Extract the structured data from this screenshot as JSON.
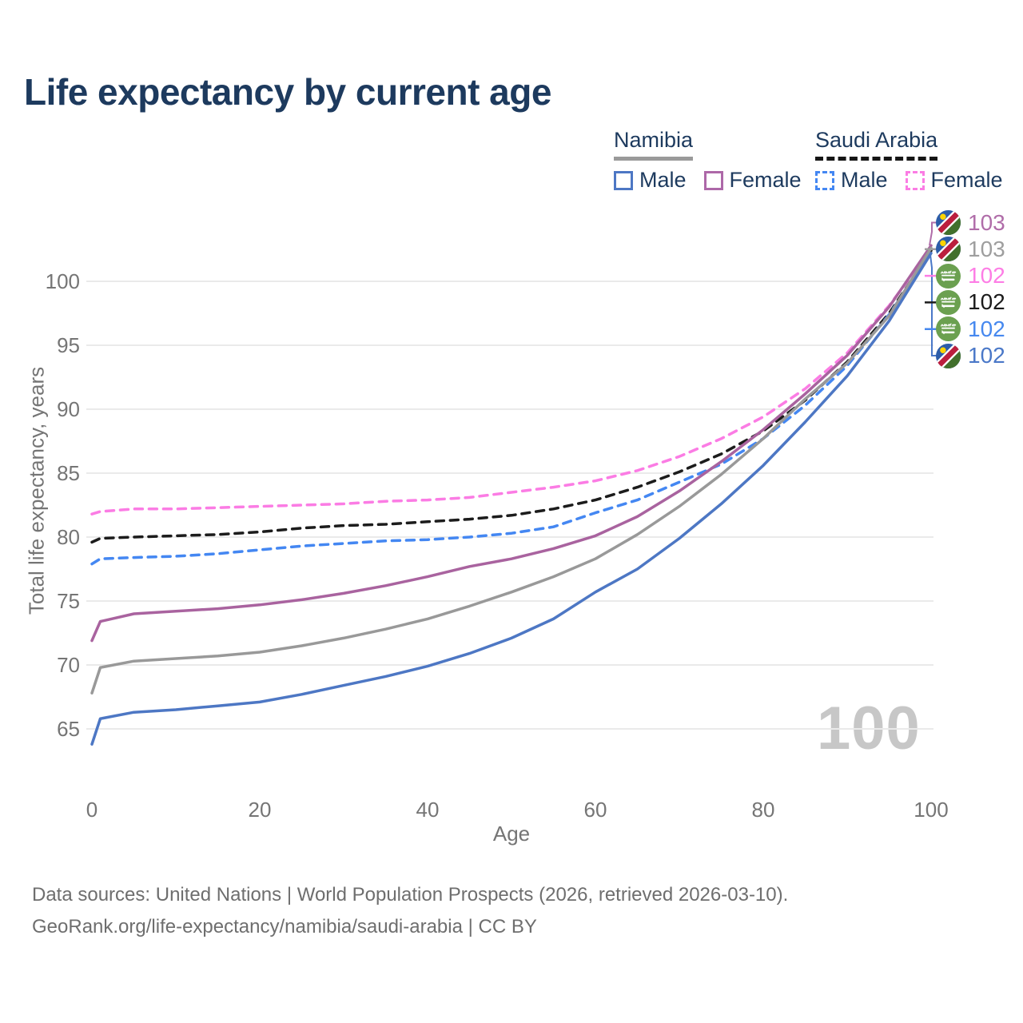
{
  "title": "Life expectancy by current age",
  "legend": {
    "groups": [
      {
        "country": "Namibia",
        "line_style": "solid",
        "underline_color": "#9a9a9a",
        "items": [
          {
            "label": "Male",
            "color": "#4d77c4",
            "dashed": false
          },
          {
            "label": "Female",
            "color": "#ad68a8",
            "dashed": false
          }
        ]
      },
      {
        "country": "Saudi Arabia",
        "line_style": "dashed",
        "underline_color": "#161616",
        "items": [
          {
            "label": "Male",
            "color": "#4487f2",
            "dashed": true
          },
          {
            "label": "Female",
            "color": "#fb7ce4",
            "dashed": true
          }
        ]
      }
    ]
  },
  "watermark": "100",
  "footer": {
    "line1": "Data sources: United Nations | World Population Prospects (2026, retrieved 2026-03-10).",
    "line2": "GeoRank.org/life-expectancy/namibia/saudi-arabia | CC BY"
  },
  "chart_data": {
    "type": "line",
    "title": "Life expectancy by current age",
    "xlabel": "Age",
    "ylabel": "Total life expectancy, years",
    "xlim": [
      0,
      100
    ],
    "ylim": [
      63,
      104
    ],
    "xticks": [
      0,
      20,
      40,
      60,
      80,
      100
    ],
    "yticks": [
      65,
      70,
      75,
      80,
      85,
      90,
      95,
      100
    ],
    "grid": "horizontal-only",
    "legend_position": "top-right",
    "ages": [
      0,
      1,
      5,
      10,
      15,
      20,
      25,
      30,
      35,
      40,
      45,
      50,
      55,
      60,
      65,
      70,
      75,
      80,
      85,
      90,
      95,
      100
    ],
    "series": [
      {
        "name": "Saudi Arabia Female",
        "country": "Saudi Arabia",
        "sex": "Female",
        "color": "#fb7ce4",
        "dashed": true,
        "values": [
          81.8,
          82.0,
          82.2,
          82.2,
          82.3,
          82.4,
          82.5,
          82.6,
          82.8,
          82.9,
          83.1,
          83.5,
          83.9,
          84.4,
          85.2,
          86.3,
          87.7,
          89.4,
          91.6,
          94.4,
          98.1,
          102.5
        ]
      },
      {
        "name": "Saudi Arabia Overall",
        "country": "Saudi Arabia",
        "sex": "Both",
        "color": "#1c1c1c",
        "dashed": true,
        "values": [
          79.6,
          79.9,
          80.0,
          80.1,
          80.2,
          80.4,
          80.7,
          80.9,
          81.0,
          81.2,
          81.4,
          81.7,
          82.2,
          82.9,
          83.9,
          85.1,
          86.5,
          88.3,
          90.7,
          93.7,
          97.5,
          102.4
        ]
      },
      {
        "name": "Saudi Arabia Male",
        "country": "Saudi Arabia",
        "sex": "Male",
        "color": "#4487f2",
        "dashed": true,
        "values": [
          77.9,
          78.3,
          78.4,
          78.5,
          78.7,
          79.0,
          79.3,
          79.5,
          79.7,
          79.8,
          80.0,
          80.3,
          80.8,
          81.9,
          82.9,
          84.3,
          85.7,
          87.7,
          90.3,
          93.4,
          97.4,
          102.3
        ]
      },
      {
        "name": "Namibia Female",
        "country": "Namibia",
        "sex": "Female",
        "color": "#a9639f",
        "dashed": false,
        "values": [
          71.9,
          73.4,
          74.0,
          74.2,
          74.4,
          74.7,
          75.1,
          75.6,
          76.2,
          76.9,
          77.7,
          78.3,
          79.1,
          80.1,
          81.6,
          83.6,
          85.9,
          88.4,
          91.2,
          94.2,
          98.0,
          102.8
        ]
      },
      {
        "name": "Namibia Overall",
        "country": "Namibia",
        "sex": "Both",
        "color": "#999999",
        "dashed": false,
        "values": [
          67.8,
          69.8,
          70.3,
          70.5,
          70.7,
          71.0,
          71.5,
          72.1,
          72.8,
          73.6,
          74.6,
          75.7,
          76.9,
          78.3,
          80.2,
          82.4,
          84.9,
          87.7,
          90.8,
          93.6,
          97.3,
          102.6
        ]
      },
      {
        "name": "Namibia Male",
        "country": "Namibia",
        "sex": "Male",
        "color": "#4d77c4",
        "dashed": false,
        "values": [
          63.8,
          65.8,
          66.3,
          66.5,
          66.8,
          67.1,
          67.7,
          68.4,
          69.1,
          69.9,
          70.9,
          72.1,
          73.6,
          75.7,
          77.5,
          79.9,
          82.6,
          85.6,
          89.0,
          92.6,
          96.9,
          102.2
        ]
      }
    ],
    "end_labels": [
      {
        "value": "103",
        "color": "#b06da9",
        "flag": "namibia",
        "series": "Namibia Female"
      },
      {
        "value": "103",
        "color": "#9e9e9e",
        "flag": "namibia",
        "series": "Namibia Overall"
      },
      {
        "value": "102",
        "color": "#fd7de5",
        "flag": "saudi-arabia",
        "series": "Saudi Arabia Female"
      },
      {
        "value": "102",
        "color": "#1b1b1b",
        "flag": "saudi-arabia",
        "series": "Saudi Arabia Overall"
      },
      {
        "value": "102",
        "color": "#4688ef",
        "flag": "saudi-arabia",
        "series": "Saudi Arabia Male"
      },
      {
        "value": "102",
        "color": "#4a78c8",
        "flag": "namibia",
        "series": "Namibia Male"
      }
    ]
  }
}
